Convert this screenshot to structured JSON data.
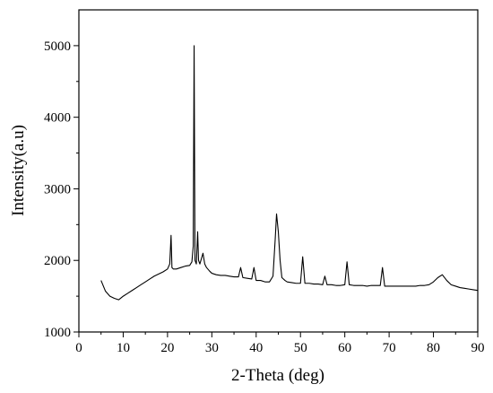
{
  "chart_data": {
    "type": "line",
    "title": "",
    "xlabel": "2-Theta (deg)",
    "ylabel": "Intensity(a.u)",
    "xlim": [
      0,
      90
    ],
    "ylim": [
      1000,
      5500
    ],
    "xticks": [
      0,
      10,
      20,
      30,
      40,
      50,
      60,
      70,
      80,
      90
    ],
    "yticks": [
      1000,
      2000,
      3000,
      4000,
      5000
    ],
    "grid": false,
    "legend": "none",
    "line_color": "#000000",
    "series": [
      {
        "x": [
          5,
          6,
          7,
          8,
          9,
          10,
          11,
          12,
          13,
          14,
          15,
          16,
          17,
          18,
          19,
          20,
          20.5,
          20.8,
          21,
          21.3,
          22,
          23,
          24,
          25,
          25.5,
          25.8,
          26,
          26.2,
          26.5,
          26.8,
          27,
          27.3,
          28,
          28.4,
          28.8,
          29.5,
          30,
          31,
          32,
          33,
          34,
          35,
          36,
          36.5,
          37,
          38,
          39,
          39.5,
          40,
          41,
          42,
          43,
          43.8,
          44.3,
          44.6,
          45,
          45.4,
          45.8,
          46.5,
          47,
          48,
          49,
          50,
          50.5,
          51,
          52,
          53,
          54,
          55,
          55.5,
          56,
          57,
          58,
          59,
          60,
          60.5,
          61,
          62,
          63,
          64,
          65,
          66,
          67,
          68,
          68.5,
          69,
          70,
          71,
          72,
          73,
          74,
          75,
          76,
          77,
          78,
          79,
          80,
          81,
          82,
          83,
          84,
          85,
          86,
          87,
          88,
          89,
          90
        ],
        "y": [
          1720,
          1570,
          1500,
          1470,
          1450,
          1500,
          1540,
          1580,
          1620,
          1660,
          1700,
          1740,
          1780,
          1810,
          1840,
          1880,
          1950,
          2350,
          1900,
          1880,
          1880,
          1900,
          1920,
          1930,
          1980,
          2200,
          5000,
          2000,
          1950,
          2400,
          2000,
          1950,
          2100,
          1950,
          1900,
          1850,
          1820,
          1800,
          1790,
          1790,
          1780,
          1770,
          1770,
          1900,
          1760,
          1750,
          1740,
          1900,
          1720,
          1720,
          1700,
          1700,
          1780,
          2300,
          2650,
          2400,
          2000,
          1760,
          1720,
          1700,
          1690,
          1680,
          1680,
          2050,
          1680,
          1680,
          1670,
          1670,
          1660,
          1780,
          1660,
          1660,
          1650,
          1650,
          1660,
          1980,
          1660,
          1650,
          1650,
          1650,
          1640,
          1650,
          1650,
          1650,
          1900,
          1640,
          1640,
          1640,
          1640,
          1640,
          1640,
          1640,
          1640,
          1650,
          1650,
          1660,
          1700,
          1760,
          1800,
          1720,
          1660,
          1640,
          1620,
          1610,
          1600,
          1590,
          1580
        ]
      }
    ]
  }
}
